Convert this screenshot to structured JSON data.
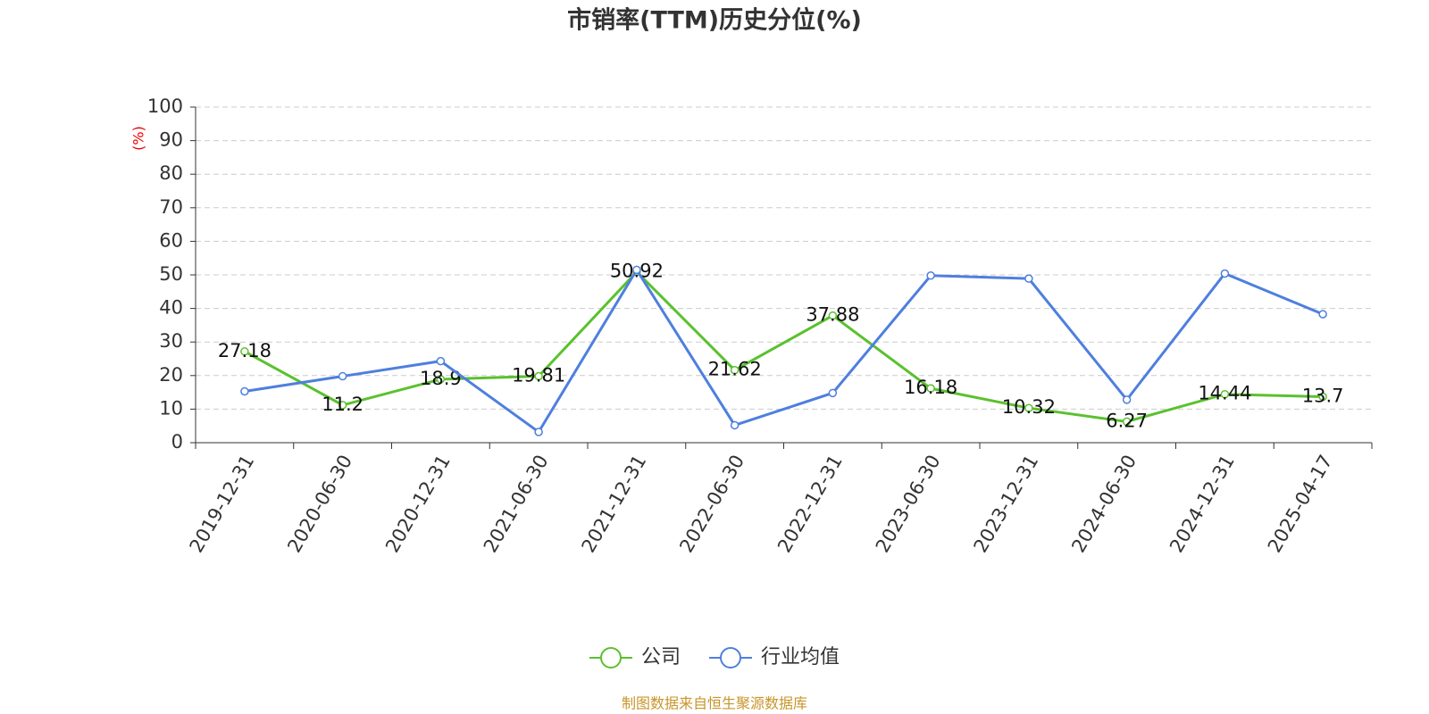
{
  "chart_data": {
    "type": "line",
    "title": "市销率(TTM)历史分位(%)",
    "y_label": "(%)",
    "source": "制图数据来自恒生聚源数据库",
    "categories": [
      "2019-12-31",
      "2020-06-30",
      "2020-12-31",
      "2021-06-30",
      "2021-12-31",
      "2022-06-30",
      "2022-12-31",
      "2023-06-30",
      "2023-12-31",
      "2024-06-30",
      "2024-12-31",
      "2025-04-17"
    ],
    "series": [
      {
        "name": "公司",
        "color": "#5ac12e",
        "values": [
          27.18,
          11.2,
          18.9,
          19.81,
          50.92,
          21.62,
          37.88,
          16.18,
          10.32,
          6.27,
          14.44,
          13.7
        ],
        "data_labels": true
      },
      {
        "name": "行业均值",
        "color": "#4e7fde",
        "values": [
          15.3,
          19.8,
          24.3,
          3.2,
          51.5,
          5.2,
          14.8,
          49.8,
          48.9,
          12.8,
          50.4,
          38.3
        ]
      }
    ],
    "ylim": [
      0,
      100
    ],
    "yticks": [
      0,
      10,
      20,
      30,
      40,
      50,
      60,
      70,
      80,
      90,
      100
    ],
    "grid": true
  }
}
